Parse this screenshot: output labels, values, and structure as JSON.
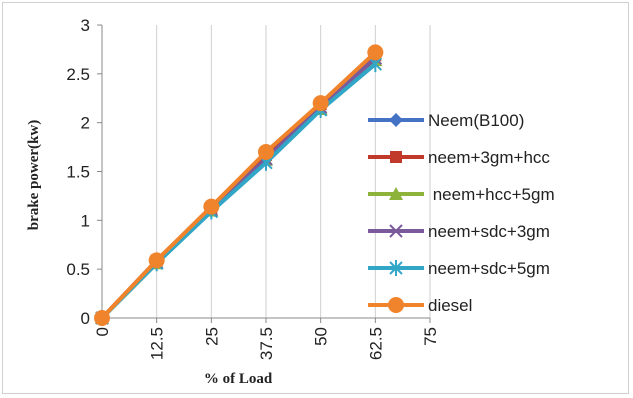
{
  "chart_data": {
    "type": "line",
    "xlabel": "% of Load",
    "ylabel": "brake power(kw)",
    "x_ticks": [
      "0",
      "12.5",
      "25",
      "37.5",
      "50",
      "62.5",
      "75"
    ],
    "y_ticks": [
      "0",
      "0.5",
      "1",
      "1.5",
      "2",
      "2.5",
      "3"
    ],
    "xlim": [
      0,
      75
    ],
    "ylim": [
      0,
      3
    ],
    "grid": "vertical",
    "legend_position": "right",
    "x": [
      0,
      12.5,
      25,
      37.5,
      50,
      62.5
    ],
    "series": [
      {
        "name": "Neem(B100)",
        "color": "#4472c4",
        "marker": "diamond",
        "values": [
          0,
          0.58,
          1.12,
          1.66,
          2.18,
          2.7
        ]
      },
      {
        "name": "neem+3gm+hcc",
        "color": "#c0392b",
        "marker": "square",
        "values": [
          0,
          0.59,
          1.13,
          1.67,
          2.19,
          2.69
        ]
      },
      {
        "name": " neem+hcc+5gm",
        "color": "#8db33a",
        "marker": "triangle",
        "values": [
          0,
          0.56,
          1.1,
          1.62,
          2.14,
          2.64
        ]
      },
      {
        "name": "neem+sdc+3gm",
        "color": "#7a5a9a",
        "marker": "x",
        "values": [
          0,
          0.57,
          1.11,
          1.63,
          2.16,
          2.66
        ]
      },
      {
        "name": "neem+sdc+5gm",
        "color": "#31a6c6",
        "marker": "star",
        "values": [
          0,
          0.56,
          1.09,
          1.59,
          2.13,
          2.6
        ]
      },
      {
        "name": "diesel",
        "color": "#f0842c",
        "marker": "circle",
        "values": [
          0,
          0.59,
          1.14,
          1.7,
          2.2,
          2.72
        ]
      }
    ]
  }
}
